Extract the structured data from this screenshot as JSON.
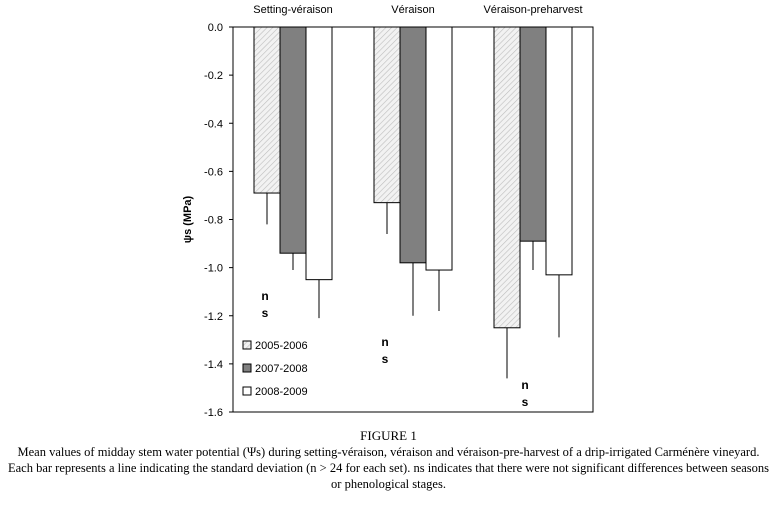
{
  "chart_data": {
    "type": "bar",
    "categories": [
      "Setting-véraison",
      "Véraison",
      "Véraison-preharvest"
    ],
    "series": [
      {
        "name": "2005-2006",
        "values": [
          -0.69,
          -0.73,
          -1.25
        ],
        "error": [
          0.13,
          0.13,
          0.21
        ],
        "color": "#e6e6e6",
        "pattern": "diagonal-hatch"
      },
      {
        "name": "2007-2008",
        "values": [
          -0.94,
          -0.98,
          -0.89
        ],
        "error": [
          0.07,
          0.22,
          0.12
        ],
        "color": "#808080"
      },
      {
        "name": "2008-2009",
        "values": [
          -1.05,
          -1.01,
          -1.03
        ],
        "error": [
          0.16,
          0.17,
          0.26
        ],
        "color": "#ffffff"
      }
    ],
    "ylabel": "ψs (MPa)",
    "ylim": [
      -1.6,
      0.0
    ],
    "yticks": [
      "0.0",
      "-0.2",
      "-0.4",
      "-0.6",
      "-0.8",
      "-1.0",
      "-1.2",
      "-1.4",
      "-1.6"
    ],
    "annotations": [
      "n s",
      "n s",
      "n s"
    ],
    "grid": false,
    "legend_position": "bottom-left"
  },
  "caption": {
    "figure_title": "FIGURE 1",
    "text": "Mean values of midday stem water potential (Ψs) during setting-véraison, véraison and véraison-pre-harvest of a drip-irrigated Carménère vineyard. Each bar represents a line indicating the standard deviation (n > 24 for each set). ns indicates that there were not significant differences between seasons or phenological stages."
  }
}
